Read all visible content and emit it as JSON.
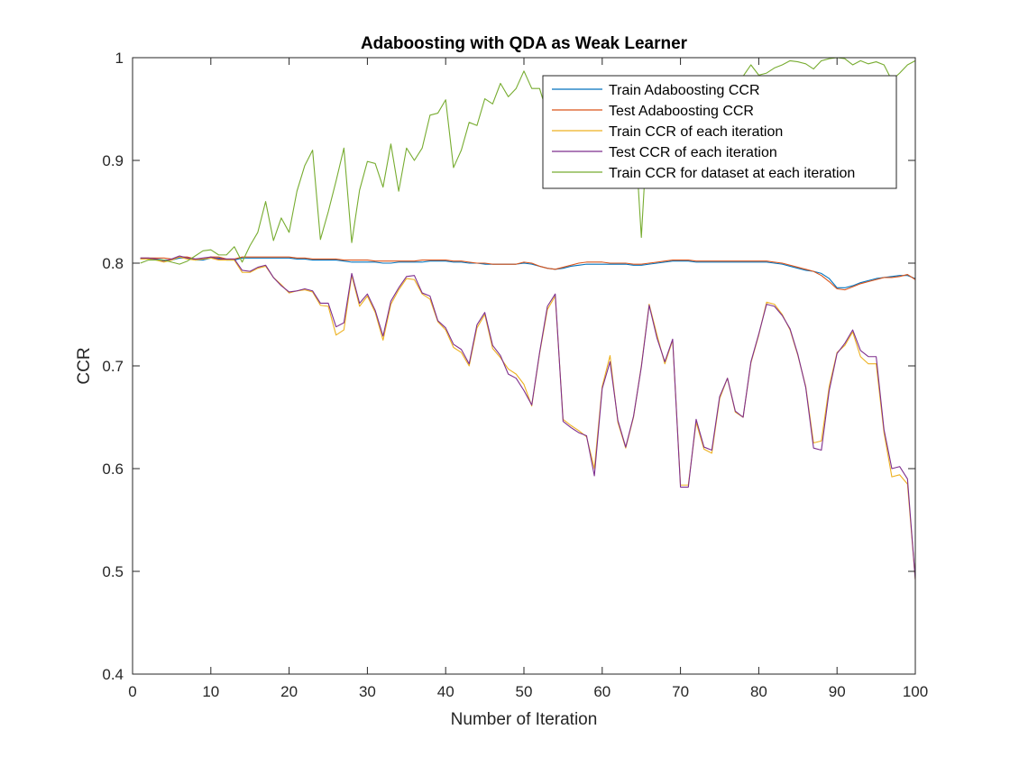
{
  "chart_data": {
    "type": "line",
    "title": "Adaboosting with QDA as Weak Learner",
    "xlabel": "Number of Iteration",
    "ylabel": "CCR",
    "xlim": [
      0,
      100
    ],
    "ylim": [
      0.4,
      1
    ],
    "xticks": [
      "0",
      "10",
      "20",
      "30",
      "40",
      "50",
      "60",
      "70",
      "80",
      "90",
      "100"
    ],
    "yticks": [
      "0.4",
      "0.5",
      "0.6",
      "0.7",
      "0.8",
      "0.9",
      "1"
    ],
    "grid": false,
    "legend_position": "top-right",
    "x": [
      1,
      2,
      3,
      4,
      5,
      6,
      7,
      8,
      9,
      10,
      11,
      12,
      13,
      14,
      15,
      16,
      17,
      18,
      19,
      20,
      21,
      22,
      23,
      24,
      25,
      26,
      27,
      28,
      29,
      30,
      31,
      32,
      33,
      34,
      35,
      36,
      37,
      38,
      39,
      40,
      41,
      42,
      43,
      44,
      45,
      46,
      47,
      48,
      49,
      50,
      51,
      52,
      53,
      54,
      55,
      56,
      57,
      58,
      59,
      60,
      61,
      62,
      63,
      64,
      65,
      66,
      67,
      68,
      69,
      70,
      71,
      72,
      73,
      74,
      75,
      76,
      77,
      78,
      79,
      80,
      81,
      82,
      83,
      84,
      85,
      86,
      87,
      88,
      89,
      90,
      91,
      92,
      93,
      94,
      95,
      96,
      97,
      98,
      99,
      100
    ],
    "series": [
      {
        "name": "Train Adaboosting CCR",
        "color": "#0072BD",
        "values": [
          0.804,
          0.804,
          0.804,
          0.803,
          0.803,
          0.805,
          0.805,
          0.803,
          0.803,
          0.805,
          0.805,
          0.803,
          0.803,
          0.805,
          0.805,
          0.805,
          0.805,
          0.805,
          0.805,
          0.805,
          0.804,
          0.804,
          0.803,
          0.803,
          0.803,
          0.803,
          0.802,
          0.801,
          0.801,
          0.801,
          0.801,
          0.8,
          0.8,
          0.801,
          0.801,
          0.801,
          0.801,
          0.802,
          0.802,
          0.802,
          0.801,
          0.801,
          0.8,
          0.8,
          0.799,
          0.799,
          0.799,
          0.799,
          0.799,
          0.8,
          0.799,
          0.797,
          0.795,
          0.794,
          0.795,
          0.797,
          0.798,
          0.799,
          0.799,
          0.799,
          0.799,
          0.799,
          0.799,
          0.798,
          0.798,
          0.799,
          0.8,
          0.801,
          0.802,
          0.802,
          0.802,
          0.801,
          0.801,
          0.801,
          0.801,
          0.801,
          0.801,
          0.801,
          0.801,
          0.801,
          0.801,
          0.8,
          0.799,
          0.797,
          0.795,
          0.793,
          0.792,
          0.79,
          0.785,
          0.776,
          0.776,
          0.778,
          0.781,
          0.783,
          0.785,
          0.786,
          0.787,
          0.788,
          0.788,
          0.785
        ]
      },
      {
        "name": "Test Adaboosting CCR",
        "color": "#D95319",
        "values": [
          0.805,
          0.805,
          0.805,
          0.805,
          0.804,
          0.806,
          0.806,
          0.804,
          0.804,
          0.806,
          0.806,
          0.804,
          0.804,
          0.806,
          0.806,
          0.806,
          0.806,
          0.806,
          0.806,
          0.806,
          0.805,
          0.805,
          0.804,
          0.804,
          0.804,
          0.804,
          0.803,
          0.803,
          0.803,
          0.803,
          0.802,
          0.802,
          0.802,
          0.802,
          0.802,
          0.802,
          0.803,
          0.803,
          0.803,
          0.803,
          0.802,
          0.802,
          0.801,
          0.8,
          0.8,
          0.799,
          0.799,
          0.799,
          0.799,
          0.801,
          0.8,
          0.797,
          0.795,
          0.794,
          0.796,
          0.798,
          0.8,
          0.801,
          0.801,
          0.801,
          0.8,
          0.8,
          0.8,
          0.799,
          0.799,
          0.8,
          0.801,
          0.802,
          0.803,
          0.803,
          0.803,
          0.802,
          0.802,
          0.802,
          0.802,
          0.802,
          0.802,
          0.802,
          0.802,
          0.802,
          0.802,
          0.801,
          0.8,
          0.798,
          0.796,
          0.794,
          0.792,
          0.788,
          0.782,
          0.775,
          0.774,
          0.777,
          0.78,
          0.782,
          0.784,
          0.786,
          0.786,
          0.787,
          0.789,
          0.784
        ]
      },
      {
        "name": "Train CCR of each iteration",
        "color": "#EDB120",
        "values": [
          0.804,
          0.804,
          0.803,
          0.801,
          0.803,
          0.806,
          0.804,
          0.803,
          0.804,
          0.805,
          0.803,
          0.803,
          0.803,
          0.791,
          0.791,
          0.795,
          0.797,
          0.786,
          0.779,
          0.771,
          0.773,
          0.774,
          0.772,
          0.759,
          0.758,
          0.73,
          0.735,
          0.788,
          0.758,
          0.768,
          0.752,
          0.725,
          0.76,
          0.774,
          0.785,
          0.784,
          0.77,
          0.765,
          0.743,
          0.735,
          0.718,
          0.713,
          0.7,
          0.737,
          0.75,
          0.717,
          0.708,
          0.697,
          0.692,
          0.682,
          0.661,
          0.712,
          0.755,
          0.768,
          0.648,
          0.642,
          0.637,
          0.631,
          0.6,
          0.68,
          0.71,
          0.645,
          0.62,
          0.65,
          0.7,
          0.76,
          0.73,
          0.702,
          0.725,
          0.584,
          0.584,
          0.645,
          0.619,
          0.615,
          0.668,
          0.688,
          0.655,
          0.65,
          0.703,
          0.73,
          0.762,
          0.76,
          0.75,
          0.735,
          0.71,
          0.68,
          0.625,
          0.627,
          0.68,
          0.713,
          0.72,
          0.733,
          0.709,
          0.702,
          0.702,
          0.635,
          0.592,
          0.594,
          0.585,
          0.492
        ]
      },
      {
        "name": "Test CCR of each iteration",
        "color": "#7E2F8E",
        "values": [
          0.805,
          0.805,
          0.804,
          0.802,
          0.804,
          0.807,
          0.805,
          0.804,
          0.805,
          0.806,
          0.804,
          0.804,
          0.804,
          0.793,
          0.792,
          0.796,
          0.798,
          0.786,
          0.778,
          0.772,
          0.773,
          0.775,
          0.773,
          0.761,
          0.761,
          0.738,
          0.742,
          0.79,
          0.761,
          0.77,
          0.754,
          0.729,
          0.763,
          0.776,
          0.787,
          0.788,
          0.771,
          0.768,
          0.744,
          0.737,
          0.721,
          0.716,
          0.702,
          0.74,
          0.752,
          0.72,
          0.71,
          0.692,
          0.688,
          0.676,
          0.662,
          0.713,
          0.758,
          0.77,
          0.646,
          0.64,
          0.635,
          0.632,
          0.593,
          0.678,
          0.704,
          0.647,
          0.621,
          0.651,
          0.699,
          0.759,
          0.727,
          0.704,
          0.726,
          0.582,
          0.582,
          0.648,
          0.621,
          0.618,
          0.67,
          0.688,
          0.656,
          0.65,
          0.704,
          0.731,
          0.76,
          0.758,
          0.749,
          0.736,
          0.711,
          0.679,
          0.62,
          0.618,
          0.676,
          0.712,
          0.722,
          0.735,
          0.715,
          0.709,
          0.709,
          0.638,
          0.6,
          0.602,
          0.59,
          0.492
        ]
      },
      {
        "name": "Train CCR for dataset at each iteration",
        "color": "#77AC30",
        "values": [
          0.8,
          0.803,
          0.803,
          0.803,
          0.801,
          0.799,
          0.802,
          0.807,
          0.812,
          0.813,
          0.808,
          0.808,
          0.816,
          0.801,
          0.817,
          0.83,
          0.86,
          0.822,
          0.844,
          0.83,
          0.87,
          0.895,
          0.91,
          0.823,
          0.85,
          0.88,
          0.912,
          0.82,
          0.871,
          0.899,
          0.897,
          0.874,
          0.916,
          0.87,
          0.912,
          0.9,
          0.912,
          0.944,
          0.946,
          0.959,
          0.893,
          0.91,
          0.937,
          0.934,
          0.96,
          0.955,
          0.975,
          0.962,
          0.97,
          0.987,
          0.97,
          0.97,
          0.945,
          0.95,
          0.95,
          0.95,
          0.95,
          0.95,
          0.95,
          0.95,
          0.95,
          0.95,
          0.95,
          0.95,
          0.825,
          0.96,
          0.96,
          0.96,
          0.96,
          0.96,
          0.96,
          0.96,
          0.96,
          0.96,
          0.96,
          0.96,
          0.96,
          0.982,
          0.993,
          0.983,
          0.985,
          0.99,
          0.993,
          0.997,
          0.996,
          0.994,
          0.989,
          0.997,
          0.999,
          1.0,
          0.999,
          0.993,
          0.997,
          0.994,
          0.996,
          0.993,
          0.978,
          0.985,
          0.993,
          0.997
        ]
      }
    ]
  }
}
